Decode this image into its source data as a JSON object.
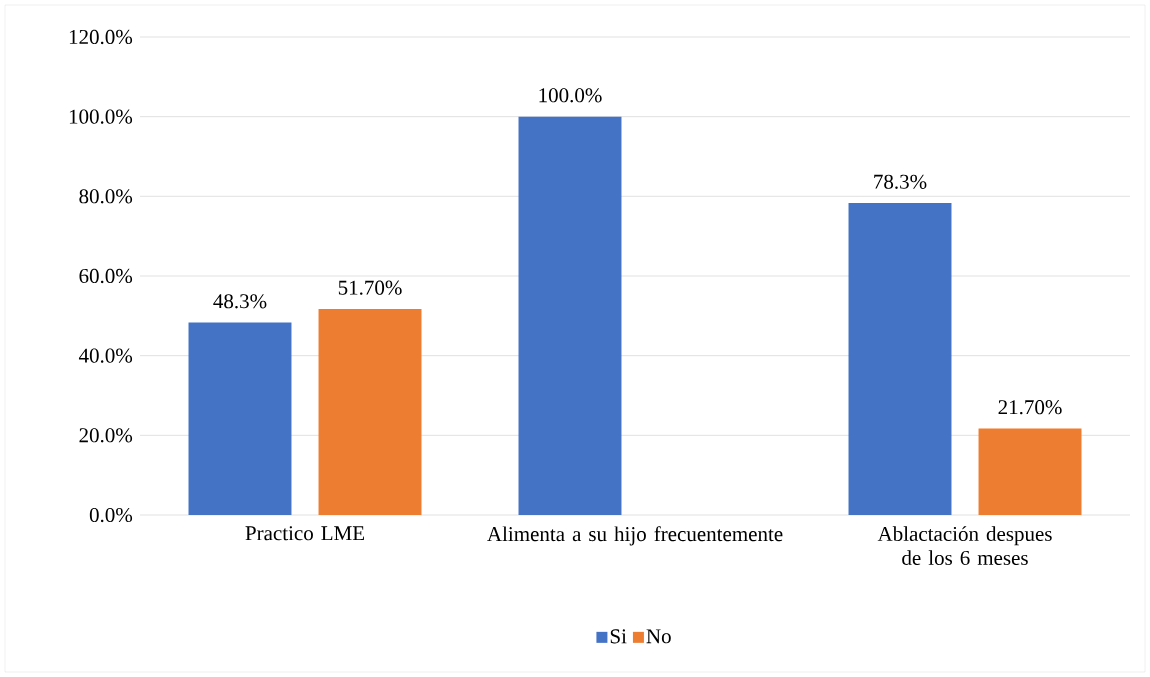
{
  "chart_data": {
    "type": "bar",
    "categories": [
      "Practico LME",
      "Alimenta a su hijo frecuentemente",
      "Ablactación despues de los 6 meses"
    ],
    "series": [
      {
        "name": "Si",
        "color": "#4472c4",
        "values": [
          48.3,
          100.0,
          78.3
        ],
        "value_labels": [
          "48.3%",
          "100.0%",
          "78.3%"
        ]
      },
      {
        "name": "No",
        "color": "#ed7d31",
        "values": [
          51.7,
          null,
          21.7
        ],
        "value_labels": [
          "51.70%",
          null,
          "21.70%"
        ]
      }
    ],
    "ylim": [
      0,
      120
    ],
    "yticks": [
      {
        "value": 0,
        "label": "0.0%"
      },
      {
        "value": 20,
        "label": "20.0%"
      },
      {
        "value": 40,
        "label": "40.0%"
      },
      {
        "value": 60,
        "label": "60.0%"
      },
      {
        "value": 80,
        "label": "80.0%"
      },
      {
        "value": 100,
        "label": "100.0%"
      },
      {
        "value": 120,
        "label": "120.0%"
      }
    ],
    "grid": "y",
    "legend": "bottom"
  }
}
